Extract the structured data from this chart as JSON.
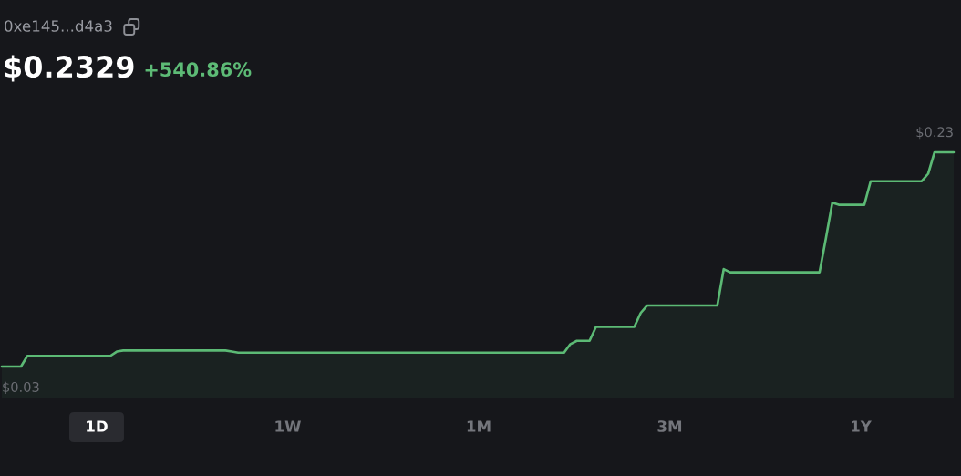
{
  "chart_data": {
    "type": "area",
    "title": "$0.2329",
    "subtitle": "+540.86%",
    "annotations": [
      "0xe145...d4a3",
      "1D",
      "1W",
      "1M",
      "3M",
      "1Y"
    ],
    "categories": [
      null,
      null,
      null,
      null,
      null,
      null,
      null,
      null,
      null,
      null,
      null,
      null,
      null,
      null,
      null,
      null,
      null,
      null,
      null,
      null,
      null,
      null,
      null,
      null,
      null,
      null,
      null,
      null,
      null,
      null,
      null,
      null,
      null,
      null,
      null,
      null,
      null,
      null,
      null,
      null,
      null,
      null,
      null,
      null,
      null,
      null,
      null,
      null,
      null,
      null,
      null,
      null,
      null,
      null,
      null,
      null,
      null,
      null,
      null,
      null,
      null,
      null,
      null,
      null,
      null,
      null,
      null,
      null,
      null,
      null,
      null,
      null,
      null,
      null,
      null,
      null,
      null,
      null,
      null,
      null,
      null,
      null,
      null,
      null,
      null,
      null,
      null,
      null,
      null,
      null,
      null,
      null,
      null,
      null,
      null,
      null,
      null,
      null,
      null,
      null,
      null,
      null,
      null,
      null,
      null,
      null,
      null,
      null,
      null,
      null,
      null,
      null,
      null,
      null,
      null,
      null,
      null,
      null,
      null,
      null,
      null,
      null,
      null,
      null,
      null,
      null,
      null,
      null,
      null,
      null,
      null,
      null,
      null,
      null,
      null,
      null,
      null,
      null,
      null,
      null,
      null,
      null,
      null,
      null,
      null,
      null,
      null,
      null,
      null,
      null
    ],
    "series": [
      {
        "color": "#5cba75",
        "values": [
          0.03,
          0.03,
          0.03,
          0.03,
          0.04,
          0.04,
          0.04,
          0.04,
          0.04,
          0.04,
          0.04,
          0.04,
          0.04,
          0.04,
          0.04,
          0.04,
          0.04,
          0.04,
          0.044,
          0.045,
          0.045,
          0.045,
          0.045,
          0.045,
          0.045,
          0.045,
          0.045,
          0.045,
          0.045,
          0.045,
          0.045,
          0.045,
          0.045,
          0.045,
          0.045,
          0.045,
          0.044,
          0.043,
          0.043,
          0.043,
          0.043,
          0.043,
          0.043,
          0.043,
          0.043,
          0.043,
          0.043,
          0.043,
          0.043,
          0.043,
          0.043,
          0.043,
          0.043,
          0.043,
          0.043,
          0.043,
          0.043,
          0.043,
          0.043,
          0.043,
          0.043,
          0.043,
          0.043,
          0.043,
          0.043,
          0.043,
          0.043,
          0.043,
          0.043,
          0.043,
          0.043,
          0.043,
          0.043,
          0.043,
          0.043,
          0.043,
          0.043,
          0.043,
          0.043,
          0.043,
          0.043,
          0.043,
          0.043,
          0.043,
          0.043,
          0.043,
          0.043,
          0.043,
          0.043,
          0.051,
          0.054,
          0.054,
          0.054,
          0.067,
          0.067,
          0.067,
          0.067,
          0.067,
          0.067,
          0.067,
          0.08,
          0.087,
          0.087,
          0.087,
          0.087,
          0.087,
          0.087,
          0.087,
          0.087,
          0.087,
          0.087,
          0.087,
          0.087,
          0.121,
          0.118,
          0.118,
          0.118,
          0.118,
          0.118,
          0.118,
          0.118,
          0.118,
          0.118,
          0.118,
          0.118,
          0.118,
          0.118,
          0.118,
          0.118,
          0.15,
          0.183,
          0.181,
          0.181,
          0.181,
          0.181,
          0.181,
          0.203,
          0.203,
          0.203,
          0.203,
          0.203,
          0.203,
          0.203,
          0.203,
          0.203,
          0.21,
          0.23,
          0.23,
          0.23,
          0.23
        ],
        "value_labels": [
          "$0.03",
          null,
          null,
          null,
          null,
          null,
          null,
          null,
          null,
          null,
          null,
          null,
          null,
          null,
          null,
          null,
          null,
          null,
          null,
          null,
          null,
          null,
          null,
          null,
          null,
          null,
          null,
          null,
          null,
          null,
          null,
          null,
          null,
          null,
          null,
          null,
          null,
          null,
          null,
          null,
          null,
          null,
          null,
          null,
          null,
          null,
          null,
          null,
          null,
          null,
          null,
          null,
          null,
          null,
          null,
          null,
          null,
          null,
          null,
          null,
          null,
          null,
          null,
          null,
          null,
          null,
          null,
          null,
          null,
          null,
          null,
          null,
          null,
          null,
          null,
          null,
          null,
          null,
          null,
          null,
          null,
          null,
          null,
          null,
          null,
          null,
          null,
          null,
          null,
          null,
          null,
          null,
          null,
          null,
          null,
          null,
          null,
          null,
          null,
          null,
          null,
          null,
          null,
          null,
          null,
          null,
          null,
          null,
          null,
          null,
          null,
          null,
          null,
          null,
          null,
          null,
          null,
          null,
          null,
          null,
          null,
          null,
          null,
          null,
          null,
          null,
          null,
          null,
          null,
          null,
          null,
          null,
          null,
          null,
          null,
          null,
          null,
          null,
          null,
          null,
          null,
          null,
          null,
          null,
          null,
          null,
          null,
          null,
          null,
          "$0.23"
        ]
      }
    ],
    "tick_labels": false
  }
}
